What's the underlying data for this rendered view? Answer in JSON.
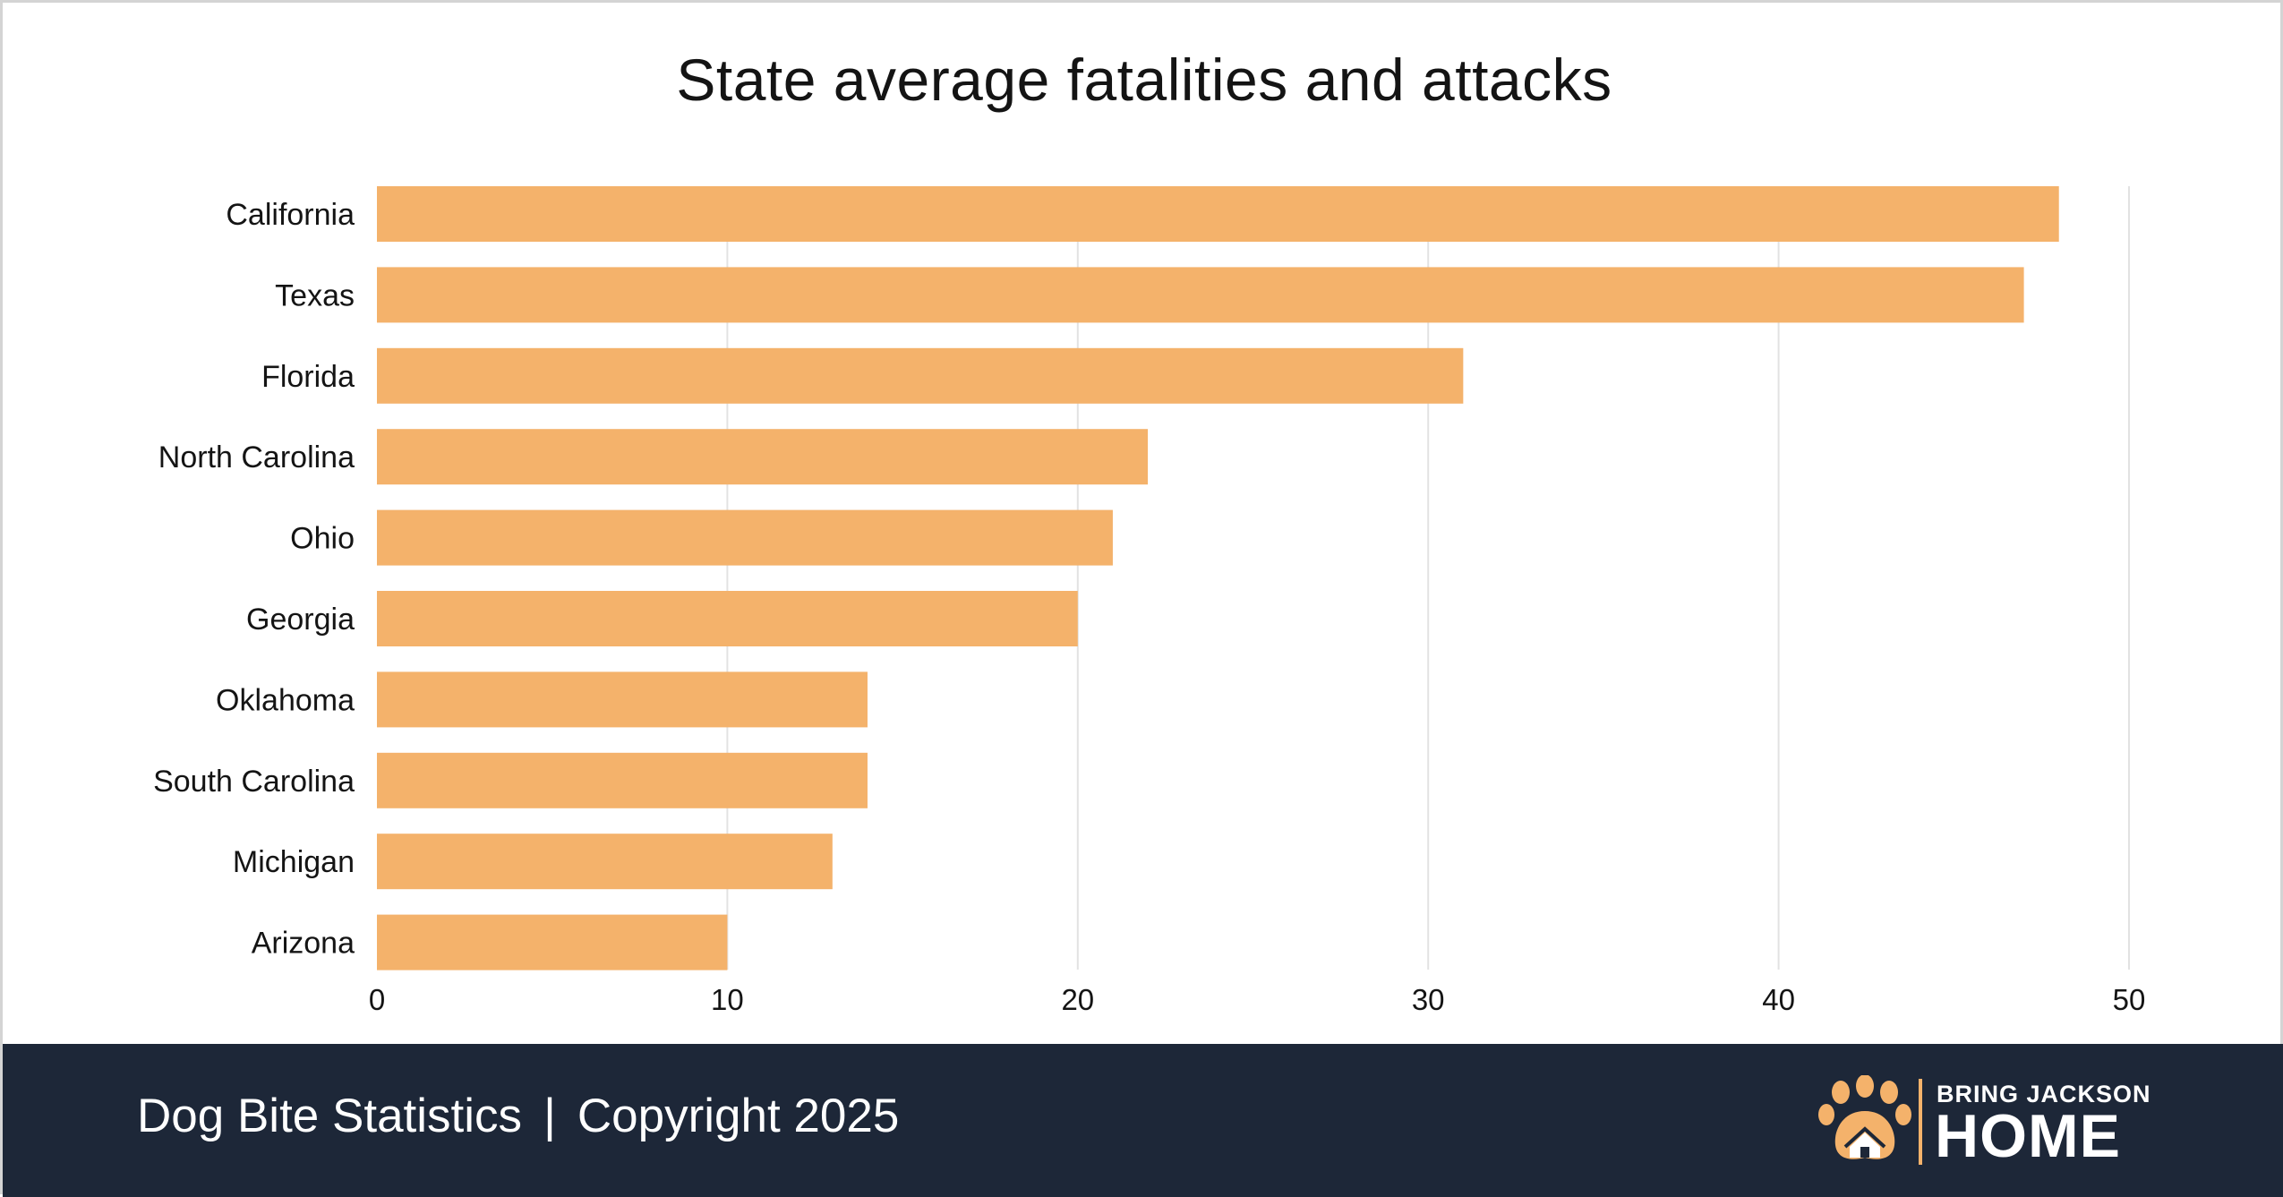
{
  "chart_data": {
    "type": "bar",
    "orientation": "horizontal",
    "title": "State average fatalities and attacks",
    "categories": [
      "California",
      "Texas",
      "Florida",
      "North Carolina",
      "Ohio",
      "Georgia",
      "Oklahoma",
      "South Carolina",
      "Michigan",
      "Arizona"
    ],
    "values": [
      48,
      47,
      31,
      22,
      21,
      20,
      14,
      14,
      13,
      10
    ],
    "xlim": [
      0,
      50
    ],
    "xticks": [
      0,
      10,
      20,
      30,
      40,
      50
    ],
    "xlabel": "",
    "ylabel": "",
    "grid": "vertical",
    "legend": "none",
    "bar_color": "#f4b26b"
  },
  "footer": {
    "source": "Dog Bite Statistics",
    "separator": "|",
    "copyright": "Copyright 2025"
  },
  "logo": {
    "line1": "BRING JACKSON",
    "line2": "HOME",
    "icon": "paw-house-icon"
  },
  "colors": {
    "bar": "#f4b26b",
    "footer_background": "#1d2738",
    "gridline": "#e2e2e2",
    "text": "#141414",
    "logo_accent": "#f4b26b"
  }
}
